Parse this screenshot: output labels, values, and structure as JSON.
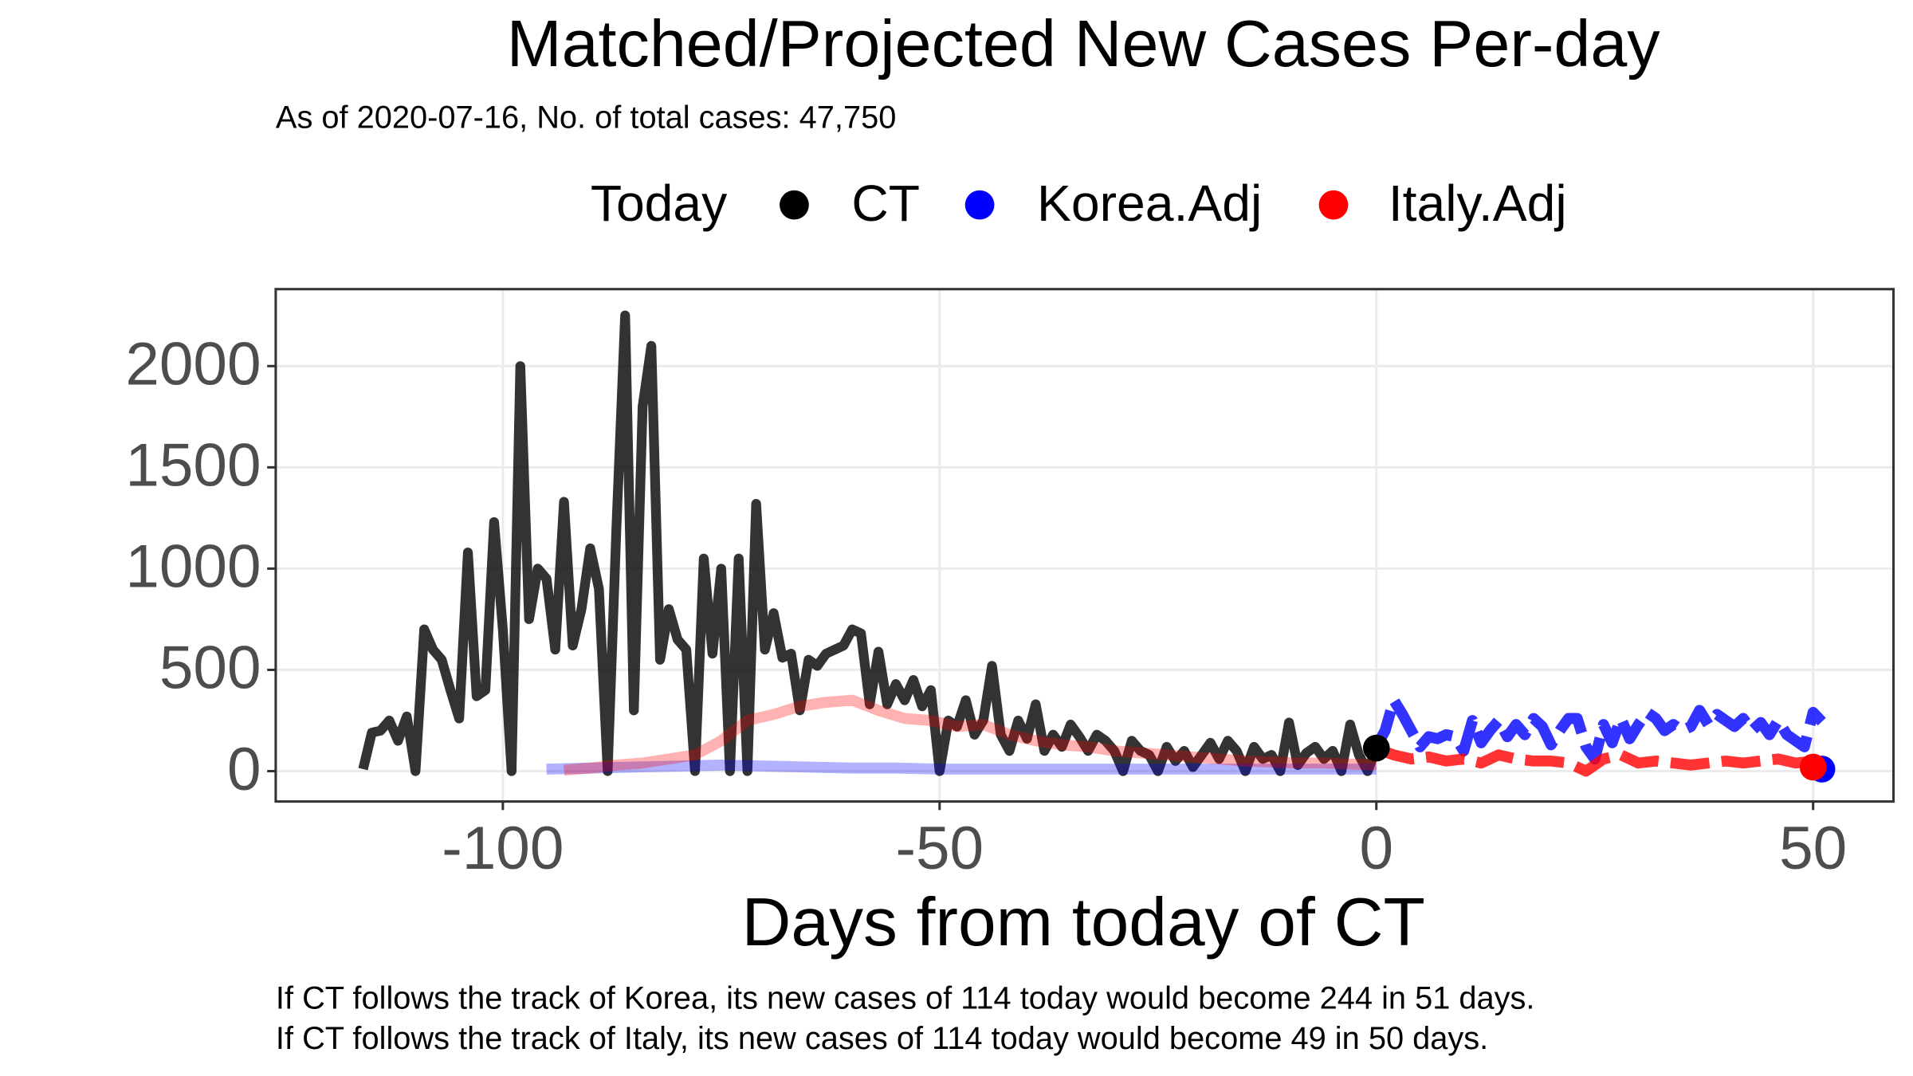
{
  "chart_data": {
    "type": "line",
    "title": "Matched/Projected New Cases Per-day",
    "subtitle": "As of 2020-07-16, No. of total cases: 47,750",
    "legend_title": "Today",
    "x_label": "Days from today of CT",
    "notes": [
      "If CT follows the track of Korea, its new cases of 114 today would become 244 in 51 days.",
      "If CT follows the track of Italy, its new cases of 114 today would become 49 in 50 days."
    ],
    "xlim": [
      -126,
      59.2
    ],
    "ylim": [
      -150,
      2380
    ],
    "xticks": [
      -100,
      -50,
      0,
      50
    ],
    "yticks": [
      0,
      500,
      1000,
      1500,
      2000
    ],
    "grid": true,
    "series": [
      {
        "name": "CT",
        "color": "#000000",
        "x": [
          -116,
          -115,
          -114,
          -113,
          -112,
          -111,
          -110,
          -109,
          -108,
          -107,
          -106,
          -105,
          -104,
          -103,
          -102,
          -101,
          -100,
          -99,
          -98,
          -97,
          -96,
          -95,
          -94,
          -93,
          -92,
          -91,
          -90,
          -89,
          -88,
          -87,
          -86,
          -85,
          -84,
          -83,
          -82,
          -81,
          -80,
          -79,
          -78,
          -77,
          -76,
          -75,
          -74,
          -73,
          -72,
          -71,
          -70,
          -69,
          -68,
          -67,
          -66,
          -65,
          -64,
          -63,
          -62,
          -61,
          -60,
          -59,
          -58,
          -57,
          -56,
          -55,
          -54,
          -53,
          -52,
          -51,
          -50,
          -49,
          -48,
          -47,
          -46,
          -45,
          -44,
          -43,
          -42,
          -41,
          -40,
          -39,
          -38,
          -37,
          -36,
          -35,
          -34,
          -33,
          -32,
          -31,
          -30,
          -29,
          -28,
          -27,
          -26,
          -25,
          -24,
          -23,
          -22,
          -21,
          -20,
          -19,
          -18,
          -17,
          -16,
          -15,
          -14,
          -13,
          -12,
          -11,
          -10,
          -9,
          -8,
          -7,
          -6,
          -5,
          -4,
          -3,
          -2,
          -1,
          0
        ],
        "values": [
          10,
          190,
          200,
          250,
          150,
          270,
          0,
          700,
          600,
          550,
          400,
          260,
          1080,
          370,
          400,
          1230,
          700,
          0,
          2000,
          750,
          1000,
          950,
          600,
          1330,
          620,
          800,
          1100,
          900,
          0,
          1200,
          2250,
          300,
          1800,
          2100,
          550,
          800,
          650,
          600,
          0,
          1050,
          580,
          1000,
          0,
          1050,
          0,
          1320,
          600,
          780,
          560,
          580,
          300,
          550,
          520,
          580,
          600,
          620,
          700,
          680,
          330,
          590,
          330,
          430,
          350,
          450,
          320,
          400,
          0,
          250,
          220,
          350,
          180,
          250,
          520,
          180,
          100,
          250,
          160,
          330,
          100,
          180,
          120,
          230,
          170,
          100,
          180,
          150,
          100,
          0,
          150,
          100,
          80,
          0,
          120,
          50,
          100,
          20,
          80,
          140,
          60,
          150,
          100,
          0,
          120,
          60,
          80,
          0,
          240,
          30,
          90,
          120,
          60,
          100,
          0,
          230,
          80,
          0,
          114
        ],
        "today": {
          "x": 0,
          "value": 114
        }
      },
      {
        "name": "Korea.Adj",
        "color": "#0000ff",
        "x": [
          -95,
          -90,
          -85,
          -80,
          -75,
          -70,
          -65,
          -60,
          -55,
          -50,
          -45,
          -40,
          -35,
          -30,
          -25,
          -20,
          -15,
          -10,
          -5,
          0
        ],
        "values": [
          10,
          15,
          20,
          25,
          30,
          25,
          20,
          15,
          15,
          10,
          10,
          10,
          10,
          10,
          10,
          10,
          10,
          10,
          10,
          10
        ],
        "projection": {
          "x": [
            0,
            1,
            2,
            3,
            4,
            5,
            6,
            7,
            8,
            9,
            10,
            11,
            12,
            13,
            14,
            15,
            16,
            17,
            18,
            19,
            20,
            21,
            22,
            23,
            24,
            25,
            26,
            27,
            28,
            29,
            30,
            31,
            32,
            33,
            34,
            35,
            36,
            37,
            38,
            39,
            40,
            41,
            42,
            43,
            44,
            45,
            46,
            47,
            48,
            49,
            50,
            51
          ],
          "values": [
            120,
            200,
            350,
            280,
            200,
            120,
            170,
            160,
            180,
            170,
            100,
            250,
            140,
            200,
            250,
            170,
            230,
            180,
            260,
            220,
            130,
            200,
            260,
            260,
            120,
            60,
            230,
            140,
            260,
            160,
            230,
            290,
            260,
            200,
            230,
            200,
            220,
            300,
            230,
            280,
            250,
            220,
            260,
            200,
            240,
            180,
            250,
            180,
            150,
            120,
            290,
            244
          ]
        },
        "today": {
          "x": 51,
          "value": 10
        }
      },
      {
        "name": "Italy.Adj",
        "color": "#ff0000",
        "x": [
          -93,
          -90,
          -87,
          -84,
          -81,
          -78,
          -75,
          -72,
          -69,
          -66,
          -63,
          -60,
          -57,
          -54,
          -51,
          -48,
          -45,
          -42,
          -39,
          -36,
          -33,
          -30,
          -27,
          -24,
          -21,
          -18,
          -15,
          -12,
          -9,
          -6,
          -3,
          0
        ],
        "values": [
          5,
          15,
          30,
          40,
          60,
          80,
          150,
          250,
          280,
          320,
          340,
          350,
          300,
          260,
          250,
          220,
          230,
          180,
          150,
          130,
          120,
          100,
          90,
          80,
          70,
          60,
          50,
          45,
          40,
          40,
          35,
          30
        ],
        "projection": {
          "x": [
            0,
            2,
            4,
            6,
            8,
            10,
            12,
            14,
            16,
            18,
            20,
            22,
            24,
            26,
            28,
            30,
            32,
            34,
            36,
            38,
            40,
            42,
            44,
            46,
            48,
            50
          ],
          "values": [
            110,
            80,
            60,
            70,
            50,
            60,
            40,
            80,
            60,
            50,
            50,
            40,
            0,
            60,
            80,
            40,
            50,
            40,
            30,
            40,
            50,
            40,
            50,
            60,
            40,
            49
          ]
        },
        "today": {
          "x": 50,
          "value": 20
        }
      }
    ]
  }
}
